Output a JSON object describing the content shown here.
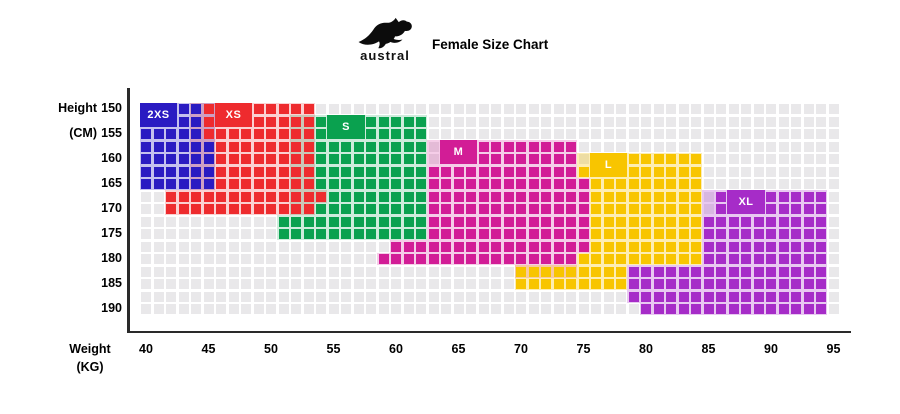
{
  "header": {
    "brand": "austral",
    "title": "Female Size Chart"
  },
  "axes": {
    "y_title_line1": "Height",
    "y_title_line2": "(CM)",
    "x_title_line1": "Weight",
    "x_title_line2": "(KG)",
    "y_ticks": [
      "150",
      "155",
      "160",
      "165",
      "170",
      "175",
      "180",
      "185",
      "190"
    ],
    "x_ticks": [
      "40",
      "45",
      "50",
      "55",
      "60",
      "65",
      "70",
      "75",
      "80",
      "85",
      "90",
      "95"
    ]
  },
  "colors": {
    "axis_line": "#2a2a2a",
    "grid_square": "#e9e8ea",
    "text": "#000000"
  },
  "chart_data": {
    "type": "heatmap",
    "title": "Female Size Chart",
    "x_axis": {
      "label": "Weight (KG)",
      "min": 40,
      "max": 95,
      "kg_per_column": 1,
      "columns": 56
    },
    "y_axis": {
      "label": "Height (CM)",
      "min": 150,
      "max": 190,
      "cm_per_row": 2.5,
      "rows": 17
    },
    "grid": {
      "note": "column c = (39+c) kg, row r = 147.5+2.5*r cm"
    },
    "sizes": [
      {
        "name": "2XS",
        "color": "#2a1bc2",
        "tint": "rgba(42,27,194,0.28)",
        "weight_range_kg": "40-45",
        "height_range_cm": "150-165",
        "badge": {
          "row": 1,
          "col": 1
        },
        "cells": [
          [
            1,
            1,
            5
          ],
          [
            2,
            1,
            5
          ],
          [
            3,
            1,
            5
          ],
          [
            4,
            1,
            6
          ],
          [
            5,
            1,
            6
          ],
          [
            6,
            1,
            6
          ],
          [
            7,
            1,
            6
          ]
        ],
        "tint_rows": [
          [
            1,
            1,
            6
          ],
          [
            2,
            1,
            6
          ],
          [
            3,
            1,
            6
          ],
          [
            4,
            1,
            6
          ],
          [
            5,
            1,
            6
          ],
          [
            6,
            1,
            6
          ],
          [
            7,
            1,
            6
          ]
        ]
      },
      {
        "name": "XS",
        "color": "#ee2b2e",
        "tint": "rgba(238,43,46,0.22)",
        "weight_range_kg": "42-54",
        "height_range_cm": "150-170",
        "badge": {
          "row": 1,
          "col": 7
        },
        "cells": [
          [
            1,
            6,
            14
          ],
          [
            2,
            6,
            14
          ],
          [
            3,
            6,
            14
          ],
          [
            4,
            7,
            14
          ],
          [
            5,
            7,
            14
          ],
          [
            6,
            7,
            14
          ],
          [
            7,
            7,
            14
          ],
          [
            8,
            3,
            15
          ],
          [
            9,
            3,
            14
          ]
        ],
        "tint_rows": [
          [
            1,
            5,
            14
          ],
          [
            2,
            5,
            14
          ],
          [
            3,
            5,
            14
          ],
          [
            4,
            5,
            14
          ],
          [
            5,
            5,
            14
          ],
          [
            6,
            5,
            14
          ],
          [
            7,
            5,
            14
          ],
          [
            8,
            3,
            15
          ],
          [
            9,
            3,
            14
          ]
        ]
      },
      {
        "name": "S",
        "color": "#0aa14f",
        "tint": "rgba(10,161,79,0.20)",
        "weight_range_kg": "51-62",
        "height_range_cm": "152.5-175",
        "badge": {
          "row": 2,
          "col": 16
        },
        "cells": [
          [
            2,
            15,
            23
          ],
          [
            3,
            15,
            23
          ],
          [
            4,
            15,
            23
          ],
          [
            5,
            15,
            23
          ],
          [
            6,
            15,
            23
          ],
          [
            7,
            15,
            23
          ],
          [
            8,
            16,
            23
          ],
          [
            9,
            15,
            23
          ],
          [
            10,
            12,
            23
          ],
          [
            11,
            12,
            23
          ]
        ],
        "tint_rows": [
          [
            2,
            13,
            23
          ],
          [
            3,
            13,
            23
          ],
          [
            4,
            13,
            23
          ],
          [
            5,
            13,
            23
          ],
          [
            6,
            13,
            23
          ],
          [
            7,
            13,
            23
          ],
          [
            8,
            13,
            23
          ],
          [
            9,
            13,
            23
          ],
          [
            10,
            12,
            23
          ],
          [
            11,
            12,
            23
          ]
        ]
      },
      {
        "name": "M",
        "color": "#d21d96",
        "tint": "rgba(210,29,150,0.22)",
        "weight_range_kg": "59-75",
        "height_range_cm": "157.5-180",
        "badge": {
          "row": 4,
          "col": 25
        },
        "cells": [
          [
            4,
            25,
            35
          ],
          [
            5,
            25,
            35
          ],
          [
            6,
            24,
            35
          ],
          [
            7,
            24,
            36
          ],
          [
            8,
            24,
            36
          ],
          [
            9,
            24,
            36
          ],
          [
            10,
            24,
            36
          ],
          [
            11,
            24,
            36
          ],
          [
            12,
            21,
            36
          ],
          [
            13,
            20,
            35
          ]
        ],
        "tint_rows": [
          [
            4,
            24,
            35
          ],
          [
            5,
            24,
            35
          ],
          [
            6,
            24,
            35
          ],
          [
            7,
            24,
            36
          ],
          [
            8,
            24,
            36
          ],
          [
            9,
            24,
            36
          ],
          [
            10,
            24,
            36
          ],
          [
            11,
            24,
            36
          ],
          [
            12,
            21,
            36
          ],
          [
            13,
            20,
            35
          ],
          [
            14,
            31,
            35
          ]
        ]
      },
      {
        "name": "L",
        "color": "#f8c500",
        "tint": "rgba(248,197,0,0.30)",
        "weight_range_kg": "70-84",
        "height_range_cm": "160-185",
        "badge": {
          "row": 5,
          "col": 37
        },
        "cells": [
          [
            5,
            40,
            45
          ],
          [
            6,
            36,
            45
          ],
          [
            7,
            37,
            45
          ],
          [
            8,
            37,
            45
          ],
          [
            9,
            37,
            45
          ],
          [
            10,
            37,
            45
          ],
          [
            11,
            37,
            45
          ],
          [
            12,
            37,
            45
          ],
          [
            13,
            36,
            45
          ],
          [
            14,
            31,
            39
          ],
          [
            15,
            31,
            39
          ]
        ],
        "tint_rows": [
          [
            5,
            36,
            45
          ],
          [
            6,
            36,
            45
          ],
          [
            7,
            37,
            45
          ],
          [
            8,
            37,
            45
          ],
          [
            9,
            37,
            45
          ],
          [
            10,
            37,
            45
          ],
          [
            11,
            37,
            45
          ],
          [
            12,
            37,
            45
          ],
          [
            13,
            36,
            45
          ],
          [
            14,
            31,
            39
          ],
          [
            15,
            31,
            39
          ]
        ]
      },
      {
        "name": "XL",
        "color": "#a62cc8",
        "tint": "rgba(166,44,200,0.26)",
        "weight_range_kg": "79-94",
        "height_range_cm": "167.5-190",
        "badge": {
          "row": 8,
          "col": 48
        },
        "cells": [
          [
            8,
            47,
            55
          ],
          [
            9,
            47,
            55
          ],
          [
            10,
            46,
            55
          ],
          [
            11,
            46,
            55
          ],
          [
            12,
            46,
            55
          ],
          [
            13,
            46,
            55
          ],
          [
            14,
            40,
            55
          ],
          [
            15,
            40,
            55
          ],
          [
            16,
            40,
            55
          ],
          [
            17,
            41,
            55
          ]
        ],
        "tint_rows": [
          [
            8,
            46,
            55
          ],
          [
            9,
            46,
            55
          ],
          [
            10,
            46,
            55
          ],
          [
            11,
            46,
            55
          ],
          [
            12,
            46,
            55
          ],
          [
            13,
            46,
            55
          ],
          [
            14,
            40,
            55
          ],
          [
            15,
            40,
            55
          ],
          [
            16,
            40,
            55
          ],
          [
            17,
            41,
            55
          ]
        ]
      }
    ]
  }
}
